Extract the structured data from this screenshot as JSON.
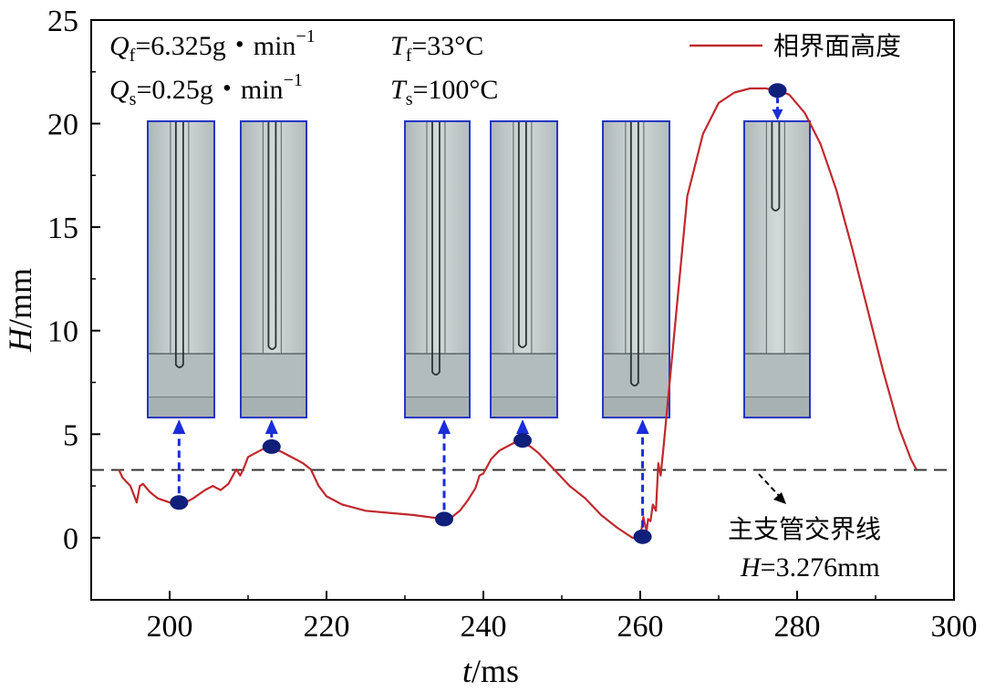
{
  "chart_data": {
    "type": "line",
    "xlabel_var": "t",
    "xlabel_unit": "/ms",
    "ylabel_var": "H",
    "ylabel_unit": "/mm",
    "xlim": [
      190,
      300
    ],
    "ylim": [
      -3,
      25
    ],
    "xticks": [
      200,
      220,
      240,
      260,
      280,
      300
    ],
    "yticks": [
      0,
      5,
      10,
      15,
      20,
      25
    ],
    "legend": {
      "label": "相界面高度",
      "position": "top-right",
      "color": "#c0282d"
    },
    "series": [
      {
        "name": "相界面高度",
        "color": "#c0282d",
        "x": [
          193.5,
          194,
          195,
          195.8,
          196.2,
          196.6,
          197.5,
          198.5,
          200,
          201.5,
          203,
          204.5,
          205.5,
          206.5,
          207.5,
          208.5,
          209,
          209.5,
          210,
          211,
          212,
          213,
          214,
          215,
          216,
          217,
          218,
          219,
          220,
          222,
          225,
          228,
          231,
          233,
          235,
          236,
          237,
          238,
          239,
          239.5,
          240,
          241,
          242,
          243,
          244,
          245,
          246,
          247,
          248,
          249,
          250,
          251,
          253,
          255,
          257,
          259,
          260,
          260.4,
          260.8,
          261,
          261.3,
          261.6,
          262,
          262.3,
          262.6,
          263,
          264,
          265,
          266,
          268,
          270,
          272,
          274,
          276,
          277.5,
          279,
          281,
          283,
          285,
          287,
          289,
          291,
          293,
          294.5,
          295.2
        ],
        "y": [
          3.3,
          2.9,
          2.5,
          1.7,
          2.5,
          2.6,
          2.2,
          1.9,
          1.7,
          1.6,
          1.9,
          2.3,
          2.5,
          2.3,
          2.6,
          3.3,
          3.0,
          3.4,
          3.9,
          4.1,
          4.3,
          4.3,
          4.2,
          4.0,
          3.8,
          3.6,
          3.3,
          2.5,
          2.0,
          1.6,
          1.3,
          1.2,
          1.1,
          1.0,
          0.9,
          1.0,
          1.3,
          1.8,
          2.4,
          3.0,
          3.1,
          3.8,
          4.2,
          4.4,
          4.6,
          4.6,
          4.4,
          4.1,
          3.7,
          3.3,
          2.9,
          2.5,
          1.9,
          1.1,
          0.5,
          0.0,
          0.0,
          1.0,
          0.3,
          0.9,
          0.8,
          1.6,
          1.3,
          3.6,
          3.0,
          4.5,
          8.5,
          12.5,
          16.5,
          19.5,
          21.0,
          21.5,
          21.7,
          21.7,
          21.6,
          21.4,
          20.5,
          19.0,
          16.8,
          14.0,
          11.0,
          8.0,
          5.3,
          3.8,
          3.3
        ]
      }
    ],
    "reference_line": {
      "y": 3.276,
      "style": "dashed"
    },
    "markers": [
      {
        "x": 201.2,
        "y": 1.7,
        "arrow": "up"
      },
      {
        "x": 213.0,
        "y": 4.4,
        "arrow": "up"
      },
      {
        "x": 235.0,
        "y": 0.9,
        "arrow": "up"
      },
      {
        "x": 245.0,
        "y": 4.7,
        "arrow": "up"
      },
      {
        "x": 260.3,
        "y": 0.05,
        "arrow": "up"
      },
      {
        "x": 277.5,
        "y": 21.6,
        "arrow": "down"
      }
    ],
    "annotations": {
      "qf_sym": "Q",
      "qf_sub": "f",
      "qf_val": "=6.325g・min",
      "qf_sup": "−1",
      "qs_sym": "Q",
      "qs_sub": "s",
      "qs_val": "=0.25g・min",
      "qs_sup": "−1",
      "tf_sym": "T",
      "tf_sub": "f",
      "tf_val": "=33°C",
      "ts_sym": "T",
      "ts_sub": "s",
      "ts_val": "=100°C",
      "junction_label": "主支管交界线",
      "junction_var": "H",
      "junction_val": "=3.276mm"
    }
  },
  "colors": {
    "line": "#c0282d",
    "marker": "#0f1f7a",
    "arrow": "#1a2ed8",
    "photo_border": "#2436c4"
  }
}
